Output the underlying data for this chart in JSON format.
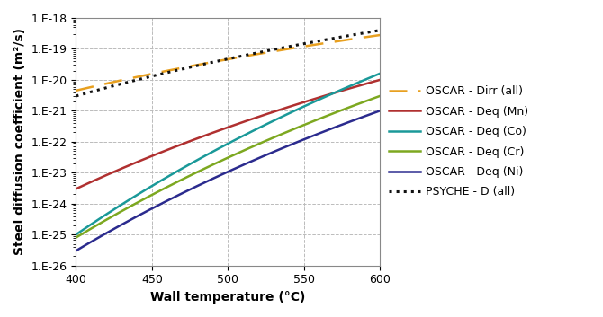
{
  "title": "",
  "xlabel": "Wall temperature (°C)",
  "ylabel": "Steel diffusion coefficient (m²/s)",
  "xlim": [
    400,
    600
  ],
  "ylim_log": [
    -26,
    -18
  ],
  "xticks": [
    400,
    450,
    500,
    550,
    600
  ],
  "series": [
    {
      "name": "OSCAR - Dirr (all)",
      "color": "#E8A020",
      "linestyle": "--",
      "linewidth": 1.8,
      "dashes": [
        8,
        5
      ],
      "D_400": 4.5e-21,
      "D_600": 2.8e-19
    },
    {
      "name": "OSCAR - Deq (Mn)",
      "color": "#B03030",
      "linestyle": "-",
      "linewidth": 1.8,
      "dashes": null,
      "D_400": 3e-24,
      "D_600": 1e-20
    },
    {
      "name": "OSCAR - Deq (Co)",
      "color": "#1A9999",
      "linestyle": "-",
      "linewidth": 1.8,
      "dashes": null,
      "D_400": 1e-25,
      "D_600": 1.6e-20
    },
    {
      "name": "OSCAR - Deq (Cr)",
      "color": "#7DA820",
      "linestyle": "-",
      "linewidth": 1.8,
      "dashes": null,
      "D_400": 8e-26,
      "D_600": 3e-21
    },
    {
      "name": "OSCAR - Deq (Ni)",
      "color": "#2B2B8E",
      "linestyle": "-",
      "linewidth": 1.8,
      "dashes": null,
      "D_400": 3e-26,
      "D_600": 1e-21
    },
    {
      "name": "PSYCHE - D (all)",
      "color": "#111111",
      "linestyle": ":",
      "linewidth": 2.2,
      "dashes": null,
      "D_400": 3e-21,
      "D_600": 4e-19
    }
  ],
  "background_color": "#ffffff",
  "grid_color": "#bbbbbb",
  "legend_fontsize": 9,
  "axis_fontsize": 10,
  "axis_label_fontsize": 10,
  "tick_fontsize": 9
}
